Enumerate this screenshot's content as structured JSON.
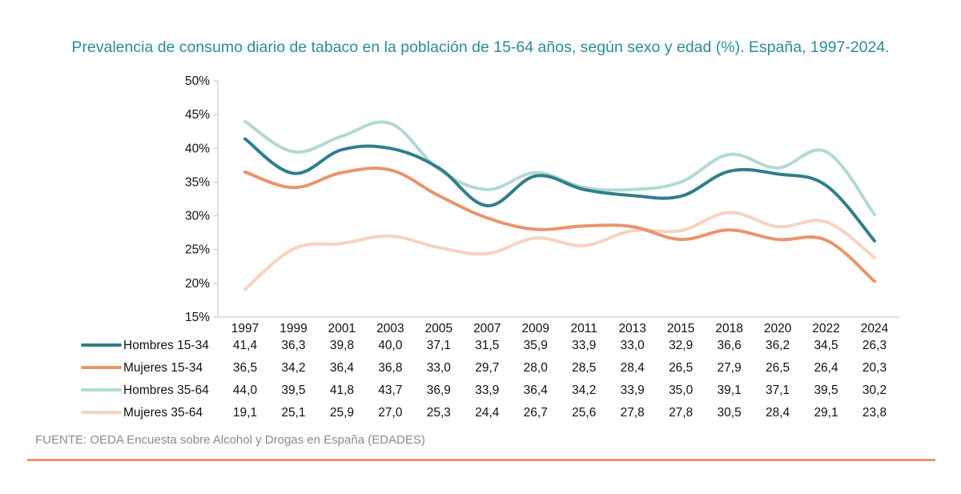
{
  "chart_data": {
    "type": "line",
    "title": "Prevalencia de consumo diario de tabaco en la población de 15-64 años, según sexo y edad (%). España, 1997-2024.",
    "categories": [
      "1997",
      "1999",
      "2001",
      "2003",
      "2005",
      "2007",
      "2009",
      "2011",
      "2013",
      "2015",
      "2018",
      "2020",
      "2022",
      "2024"
    ],
    "ylim": [
      15,
      50
    ],
    "yticks": [
      "15%",
      "20%",
      "25%",
      "30%",
      "35%",
      "40%",
      "45%",
      "50%"
    ],
    "series": [
      {
        "name": "Hombres 15-34",
        "color": "#2f7f8a",
        "values": [
          41.4,
          36.3,
          39.8,
          40.0,
          37.1,
          31.5,
          35.9,
          33.9,
          33.0,
          32.9,
          36.6,
          36.2,
          34.5,
          26.3
        ],
        "labels": [
          "41,4",
          "36,3",
          "39,8",
          "40,0",
          "37,1",
          "31,5",
          "35,9",
          "33,9",
          "33,0",
          "32,9",
          "36,6",
          "36,2",
          "34,5",
          "26,3"
        ]
      },
      {
        "name": "Mujeres 15-34",
        "color": "#e8956b",
        "values": [
          36.5,
          34.2,
          36.4,
          36.8,
          33.0,
          29.7,
          28.0,
          28.5,
          28.4,
          26.5,
          27.9,
          26.5,
          26.4,
          20.3
        ],
        "labels": [
          "36,5",
          "34,2",
          "36,4",
          "36,8",
          "33,0",
          "29,7",
          "28,0",
          "28,5",
          "28,4",
          "26,5",
          "27,9",
          "26,5",
          "26,4",
          "20,3"
        ]
      },
      {
        "name": "Hombres 35-64",
        "color": "#b3d8d6",
        "values": [
          44.0,
          39.5,
          41.8,
          43.7,
          36.9,
          33.9,
          36.4,
          34.2,
          33.9,
          35.0,
          39.1,
          37.1,
          39.5,
          30.2
        ],
        "labels": [
          "44,0",
          "39,5",
          "41,8",
          "43,7",
          "36,9",
          "33,9",
          "36,4",
          "34,2",
          "33,9",
          "35,0",
          "39,1",
          "37,1",
          "39,5",
          "30,2"
        ]
      },
      {
        "name": "Mujeres 35-64",
        "color": "#f6d3c1",
        "values": [
          19.1,
          25.1,
          25.9,
          27.0,
          25.3,
          24.4,
          26.7,
          25.6,
          27.8,
          27.8,
          30.5,
          28.4,
          29.1,
          23.8
        ],
        "labels": [
          "19,1",
          "25,1",
          "25,9",
          "27,0",
          "25,3",
          "24,4",
          "26,7",
          "25,6",
          "27,8",
          "27,8",
          "30,5",
          "28,4",
          "29,1",
          "23,8"
        ]
      }
    ],
    "grid": false,
    "legend_placement": "data-table"
  },
  "footer": {
    "source": "FUENTE: OEDA Encuesta sobre Alcohol y Drogas en España (EDADES)"
  }
}
